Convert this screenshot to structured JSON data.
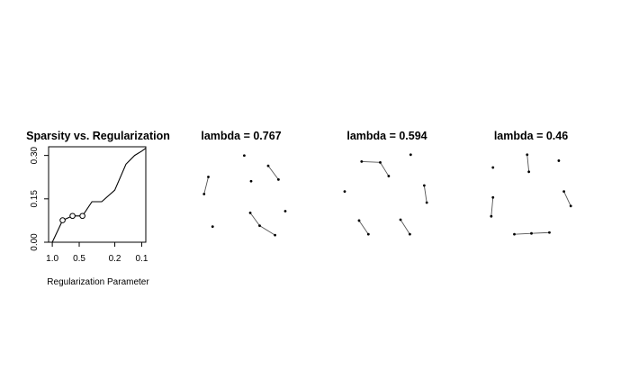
{
  "chart_data": [
    {
      "type": "line",
      "title": "Sparsity vs. Regularization",
      "xlabel": "Regularization Parameter",
      "ylabel": "",
      "x_scale": "log",
      "x_reversed": true,
      "xlim": [
        1.1,
        0.09
      ],
      "ylim": [
        0,
        0.33
      ],
      "x_ticks": [
        1.0,
        0.5,
        0.2,
        0.1
      ],
      "x_tick_labels": [
        "1.0",
        "0.5",
        "0.2",
        "0.1"
      ],
      "y_ticks": [
        0.0,
        0.15,
        0.3
      ],
      "y_tick_labels": [
        "0.00",
        "0.15",
        "0.30"
      ],
      "grid": false,
      "line_color": "#000000",
      "x": [
        1.0,
        0.767,
        0.594,
        0.46,
        0.36,
        0.28,
        0.2,
        0.15,
        0.12,
        0.1,
        0.09
      ],
      "y": [
        0.0,
        0.076,
        0.091,
        0.091,
        0.14,
        0.14,
        0.18,
        0.27,
        0.3,
        0.315,
        0.325
      ],
      "marked_points": [
        {
          "x": 0.767,
          "y": 0.076
        },
        {
          "x": 0.594,
          "y": 0.091
        },
        {
          "x": 0.46,
          "y": 0.091
        }
      ]
    },
    {
      "type": "graph",
      "title": "lambda = 0.767",
      "nodes": [
        [
          0.52,
          0.95
        ],
        [
          0.05,
          0.5
        ],
        [
          0.1,
          0.7
        ],
        [
          0.15,
          0.12
        ],
        [
          0.6,
          0.65
        ],
        [
          0.8,
          0.83
        ],
        [
          0.92,
          0.67
        ],
        [
          1.0,
          0.3
        ],
        [
          0.59,
          0.28
        ],
        [
          0.7,
          0.13
        ],
        [
          0.88,
          0.02
        ]
      ],
      "edges": [
        [
          1,
          2
        ],
        [
          5,
          6
        ],
        [
          8,
          9
        ],
        [
          9,
          10
        ]
      ]
    },
    {
      "type": "graph",
      "title": "lambda = 0.594",
      "nodes": [
        [
          0.2,
          0.88
        ],
        [
          0.42,
          0.87
        ],
        [
          0.52,
          0.71
        ],
        [
          0.78,
          0.96
        ],
        [
          0.0,
          0.53
        ],
        [
          0.94,
          0.6
        ],
        [
          0.97,
          0.4
        ],
        [
          0.17,
          0.19
        ],
        [
          0.28,
          0.03
        ],
        [
          0.66,
          0.2
        ],
        [
          0.77,
          0.03
        ]
      ],
      "edges": [
        [
          0,
          1
        ],
        [
          1,
          2
        ],
        [
          5,
          6
        ],
        [
          7,
          8
        ],
        [
          9,
          10
        ]
      ]
    },
    {
      "type": "graph",
      "title": "lambda = 0.46",
      "nodes": [
        [
          0.45,
          0.96
        ],
        [
          0.47,
          0.76
        ],
        [
          0.05,
          0.81
        ],
        [
          0.05,
          0.46
        ],
        [
          0.03,
          0.24
        ],
        [
          0.82,
          0.89
        ],
        [
          0.88,
          0.53
        ],
        [
          0.96,
          0.36
        ],
        [
          0.3,
          0.03
        ],
        [
          0.5,
          0.04
        ],
        [
          0.71,
          0.05
        ]
      ],
      "edges": [
        [
          0,
          1
        ],
        [
          3,
          4
        ],
        [
          6,
          7
        ],
        [
          8,
          9
        ],
        [
          9,
          10
        ]
      ]
    }
  ]
}
